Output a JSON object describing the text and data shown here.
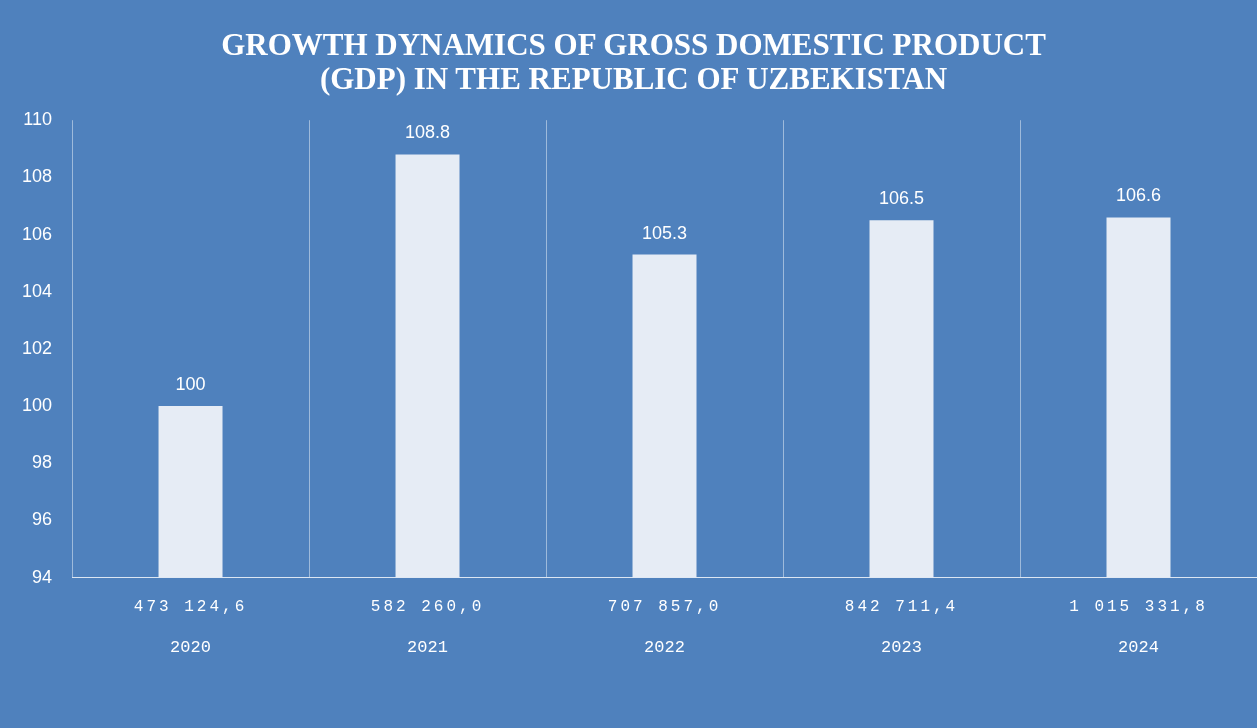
{
  "chart_data": {
    "type": "bar",
    "title": "GROWTH DYNAMICS OF GROSS DOMESTIC PRODUCT\n(GDP) IN THE REPUBLIC OF UZBEKISTAN",
    "categories": [
      "2020",
      "2021",
      "2022",
      "2023",
      "2024"
    ],
    "values": [
      100,
      108.8,
      105.3,
      106.5,
      106.6
    ],
    "color": "#e6ecf5",
    "ylim": [
      94,
      110
    ],
    "yticks": [
      94,
      96,
      98,
      100,
      102,
      104,
      106,
      108,
      110
    ],
    "grid": "x",
    "data_labels": true,
    "annotations": [
      "473 124,6",
      "582 260,0",
      "707 857,0",
      "842 711,4",
      "1 015 331,8"
    ]
  }
}
